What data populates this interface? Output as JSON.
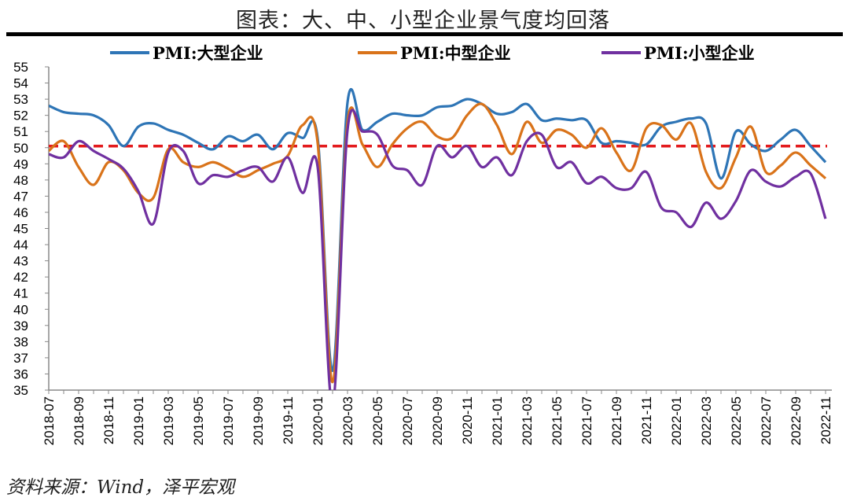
{
  "title": "图表：大、中、小型企业景气度均回落",
  "source": "资料来源：Wind，泽平宏观",
  "chart_data": {
    "type": "line",
    "title": "图表：大、中、小型企业景气度均回落",
    "xlabel": "",
    "ylabel": "",
    "ylim": [
      35,
      55
    ],
    "yticks": [
      35,
      36,
      37,
      38,
      39,
      40,
      41,
      42,
      43,
      44,
      45,
      46,
      47,
      48,
      49,
      50,
      51,
      52,
      53,
      54,
      55
    ],
    "grid": false,
    "legend_position": "top",
    "x": [
      "2018-07",
      "2018-08",
      "2018-09",
      "2018-10",
      "2018-11",
      "2018-12",
      "2019-01",
      "2019-02",
      "2019-03",
      "2019-04",
      "2019-05",
      "2019-06",
      "2019-07",
      "2019-08",
      "2019-09",
      "2019-10",
      "2019-11",
      "2019-12",
      "2020-01",
      "2020-02",
      "2020-03",
      "2020-04",
      "2020-05",
      "2020-06",
      "2020-07",
      "2020-08",
      "2020-09",
      "2020-10",
      "2020-11",
      "2020-12",
      "2021-01",
      "2021-02",
      "2021-03",
      "2021-04",
      "2021-05",
      "2021-06",
      "2021-07",
      "2021-08",
      "2021-09",
      "2021-10",
      "2021-11",
      "2021-12",
      "2022-01",
      "2022-02",
      "2022-03",
      "2022-04",
      "2022-05",
      "2022-06",
      "2022-07",
      "2022-08",
      "2022-09",
      "2022-10",
      "2022-11"
    ],
    "xtick_labels": [
      "2018-07",
      "2018-09",
      "2018-11",
      "2019-01",
      "2019-03",
      "2019-05",
      "2019-07",
      "2019-09",
      "2019-11",
      "2020-01",
      "2020-03",
      "2020-05",
      "2020-07",
      "2020-09",
      "2020-11",
      "2021-01",
      "2021-03",
      "2021-05",
      "2021-07",
      "2021-09",
      "2021-11",
      "2022-01",
      "2022-03",
      "2022-05",
      "2022-07",
      "2022-09",
      "2022-11"
    ],
    "series": [
      {
        "name": "PMI:大型企业",
        "color": "#2E75B6",
        "values": [
          52.6,
          52.2,
          52.1,
          52.0,
          51.4,
          50.1,
          51.3,
          51.5,
          51.1,
          50.8,
          50.3,
          49.9,
          50.7,
          50.4,
          50.8,
          49.9,
          50.9,
          50.6,
          50.6,
          36.2,
          52.8,
          51.1,
          51.6,
          52.1,
          52.0,
          52.0,
          52.5,
          52.6,
          53.0,
          52.7,
          52.1,
          52.2,
          52.7,
          51.7,
          51.8,
          51.7,
          51.7,
          50.3,
          50.4,
          50.3,
          50.2,
          51.3,
          51.6,
          51.8,
          51.5,
          48.1,
          51.0,
          50.2,
          49.8,
          50.5,
          51.1,
          50.1,
          49.1
        ]
      },
      {
        "name": "PMI:中型企业",
        "color": "#D9731A",
        "values": [
          49.8,
          50.4,
          48.8,
          47.7,
          49.1,
          48.6,
          47.2,
          46.9,
          49.9,
          49.1,
          48.8,
          49.1,
          48.7,
          48.2,
          48.6,
          49.0,
          49.5,
          51.4,
          50.3,
          35.5,
          51.6,
          50.2,
          48.8,
          50.2,
          51.2,
          51.6,
          50.7,
          50.6,
          52.0,
          52.7,
          51.4,
          49.6,
          51.6,
          50.3,
          51.1,
          50.8,
          50.0,
          51.2,
          49.7,
          48.6,
          51.2,
          51.4,
          50.5,
          51.5,
          48.5,
          47.5,
          49.4,
          51.3,
          48.5,
          48.9,
          49.7,
          48.9,
          48.1
        ]
      },
      {
        "name": "PMI:小型企业",
        "color": "#7030A0",
        "values": [
          49.6,
          49.4,
          50.4,
          49.8,
          49.3,
          48.7,
          47.3,
          45.3,
          49.7,
          49.8,
          47.8,
          48.3,
          48.2,
          48.6,
          48.8,
          47.9,
          49.4,
          47.2,
          48.8,
          34.1,
          51.1,
          51.0,
          50.8,
          48.9,
          48.6,
          47.7,
          50.1,
          49.4,
          50.1,
          48.8,
          49.4,
          48.3,
          50.4,
          50.8,
          48.8,
          49.1,
          47.8,
          48.2,
          47.5,
          47.5,
          48.5,
          46.3,
          46.0,
          45.1,
          46.6,
          45.6,
          46.7,
          48.6,
          47.9,
          47.6,
          48.2,
          48.4,
          45.6
        ]
      }
    ],
    "reference_line": {
      "value": 50.1,
      "color": "#E31A1C",
      "style": "dashed"
    }
  }
}
